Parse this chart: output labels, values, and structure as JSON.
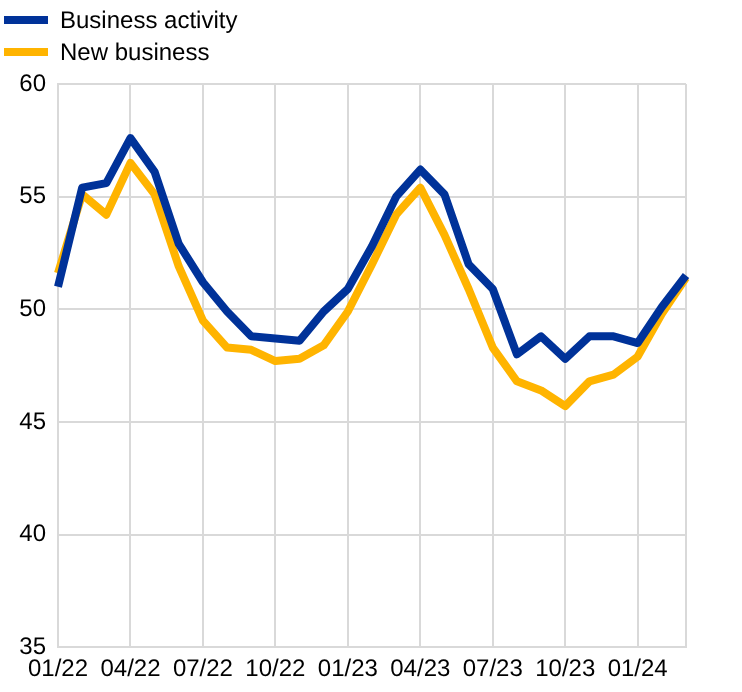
{
  "chart_data": {
    "type": "line",
    "categories": [
      "01/22",
      null,
      null,
      "04/22",
      null,
      null,
      "07/22",
      null,
      null,
      "10/22",
      null,
      null,
      "01/23",
      null,
      null,
      "04/23",
      null,
      null,
      "07/23",
      null,
      null,
      "10/23",
      null,
      null,
      "01/24",
      null,
      null
    ],
    "series": [
      {
        "name": "Business activity",
        "color": "#003299",
        "values": [
          51.0,
          55.4,
          55.6,
          57.6,
          56.1,
          52.9,
          51.2,
          49.9,
          48.8,
          48.7,
          48.6,
          49.9,
          50.9,
          52.8,
          55.0,
          56.2,
          55.1,
          52.0,
          50.9,
          48.0,
          48.8,
          47.8,
          48.8,
          48.8,
          48.5,
          50.1,
          51.5
        ]
      },
      {
        "name": "New business",
        "color": "#ffb400",
        "values": [
          51.6,
          55.1,
          54.2,
          56.5,
          55.1,
          51.9,
          49.5,
          48.3,
          48.2,
          47.7,
          47.8,
          48.4,
          49.9,
          52.0,
          54.2,
          55.4,
          53.3,
          50.9,
          48.3,
          46.8,
          46.4,
          45.7,
          46.8,
          47.1,
          47.9,
          49.8,
          51.4
        ]
      }
    ],
    "ylim": [
      35,
      60
    ],
    "yticks": [
      35,
      40,
      45,
      50,
      55,
      60
    ],
    "grid": true,
    "legend": "top left",
    "marker": "none",
    "line_style": "solid"
  }
}
